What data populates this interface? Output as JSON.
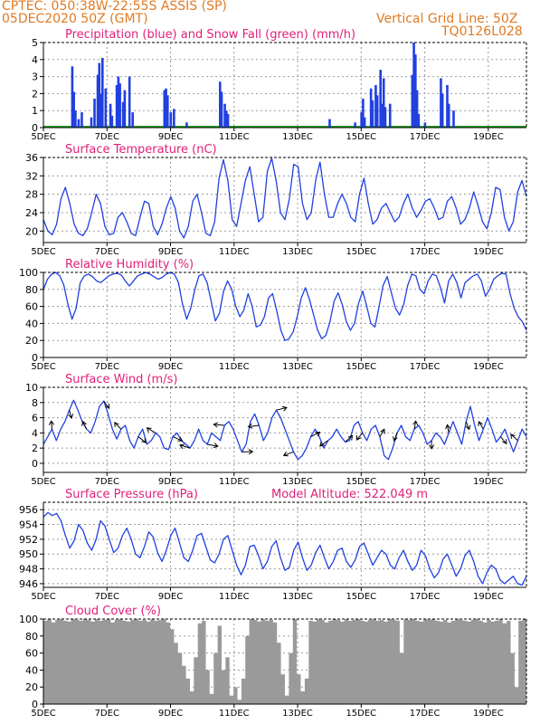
{
  "header": {
    "line1": "CPTEC:   050:38W-22:55S   ASSIS (SP)",
    "line2": "05DEC2020 50Z (GMT)",
    "grid_note": "Vertical Grid Line: 50Z",
    "code": "TQ0126L028"
  },
  "colors": {
    "title": "#e0207a",
    "header": "#e07a22",
    "series": "#2040e0",
    "snow": "#20a020",
    "cloud": "#9a9a9a"
  },
  "x_ticks": [
    "5DEC",
    "7DEC",
    "9DEC",
    "11DEC",
    "13DEC",
    "15DEC",
    "17DEC",
    "19DEC"
  ],
  "chart_data": [
    {
      "id": "precip",
      "type": "bar",
      "title": "Precipitation (blue) and Snow Fall (green) (mm/h)",
      "ylim": [
        0,
        5
      ],
      "yticks": [
        0,
        1,
        2,
        3,
        4,
        5
      ],
      "xlim": [
        5,
        20.2
      ],
      "series": [
        {
          "color": "blue",
          "points": [
            [
              5.9,
              3.6
            ],
            [
              5.95,
              2.1
            ],
            [
              6.0,
              1.0
            ],
            [
              6.1,
              0.5
            ],
            [
              6.2,
              0.9
            ],
            [
              6.5,
              0.6
            ],
            [
              6.6,
              1.7
            ],
            [
              6.7,
              3.1
            ],
            [
              6.75,
              3.8
            ],
            [
              6.8,
              2.0
            ],
            [
              6.85,
              4.1
            ],
            [
              6.95,
              2.3
            ],
            [
              7.1,
              1.4
            ],
            [
              7.15,
              0.7
            ],
            [
              7.3,
              2.5
            ],
            [
              7.35,
              3.0
            ],
            [
              7.4,
              2.6
            ],
            [
              7.5,
              1.5
            ],
            [
              7.55,
              2.2
            ],
            [
              7.7,
              3.0
            ],
            [
              7.8,
              0.9
            ],
            [
              8.8,
              2.2
            ],
            [
              8.85,
              2.3
            ],
            [
              8.9,
              1.9
            ],
            [
              9.0,
              0.9
            ],
            [
              9.1,
              1.1
            ],
            [
              9.5,
              0.3
            ],
            [
              10.55,
              2.7
            ],
            [
              10.6,
              2.1
            ],
            [
              10.7,
              1.4
            ],
            [
              10.75,
              1.0
            ],
            [
              10.8,
              0.8
            ],
            [
              14.0,
              0.5
            ],
            [
              14.8,
              0.3
            ],
            [
              15.0,
              0.9
            ],
            [
              15.05,
              1.7
            ],
            [
              15.1,
              0.6
            ],
            [
              15.3,
              2.3
            ],
            [
              15.35,
              1.6
            ],
            [
              15.45,
              2.5
            ],
            [
              15.5,
              1.9
            ],
            [
              15.6,
              3.4
            ],
            [
              15.65,
              1.4
            ],
            [
              15.7,
              2.9
            ],
            [
              15.75,
              1.2
            ],
            [
              15.9,
              1.4
            ],
            [
              16.6,
              3.1
            ],
            [
              16.65,
              5.0
            ],
            [
              16.7,
              4.3
            ],
            [
              16.75,
              2.2
            ],
            [
              16.8,
              0.8
            ],
            [
              17.0,
              0.3
            ],
            [
              17.5,
              2.9
            ],
            [
              17.55,
              2.0
            ],
            [
              17.7,
              2.5
            ],
            [
              17.75,
              1.4
            ],
            [
              17.9,
              1.0
            ]
          ]
        },
        {
          "color": "green",
          "points": []
        }
      ]
    },
    {
      "id": "temp",
      "type": "line",
      "title": "Surface Temperature (nC)",
      "ylim": [
        17.5,
        36
      ],
      "yticks": [
        20,
        24,
        28,
        32,
        36
      ],
      "xlim": [
        5,
        20.2
      ],
      "values": [
        22.5,
        20.0,
        19.2,
        21.5,
        27.0,
        29.5,
        26.0,
        21.5,
        19.5,
        19.0,
        20.5,
        24.0,
        28.0,
        26.0,
        21.0,
        19.2,
        19.5,
        23.0,
        24.0,
        22.0,
        19.5,
        19.0,
        23.0,
        26.5,
        26.0,
        21.0,
        19.2,
        21.5,
        25.0,
        27.5,
        25.0,
        20.0,
        18.5,
        21.0,
        26.5,
        28.0,
        24.0,
        19.5,
        19.0,
        22.0,
        31.5,
        35.5,
        31.0,
        22.5,
        21.0,
        26.0,
        31.0,
        34.0,
        28.0,
        22.0,
        23.0,
        33.0,
        35.8,
        31.0,
        24.0,
        22.5,
        27.0,
        34.5,
        34.0,
        26.0,
        22.5,
        24.0,
        31.0,
        35.0,
        28.0,
        23.0,
        23.0,
        26.0,
        28.0,
        26.0,
        23.0,
        22.0,
        28.0,
        31.5,
        26.0,
        21.5,
        22.5,
        25.0,
        26.0,
        24.0,
        22.0,
        23.0,
        26.0,
        28.0,
        25.0,
        23.0,
        24.5,
        26.5,
        27.0,
        25.0,
        22.5,
        23.0,
        26.5,
        27.5,
        25.0,
        21.5,
        22.5,
        25.0,
        28.5,
        25.5,
        22.0,
        20.5,
        24.0,
        29.5,
        29.0,
        23.0,
        20.0,
        22.0,
        28.5,
        31.0,
        27.5
      ]
    },
    {
      "id": "rh",
      "type": "line",
      "title": "Relative Humidity (%)",
      "ylim": [
        0,
        100
      ],
      "yticks": [
        0,
        20,
        40,
        60,
        80,
        100
      ],
      "xlim": [
        5,
        20.2
      ],
      "values": [
        80,
        92,
        98,
        100,
        96,
        85,
        62,
        45,
        58,
        88,
        96,
        98,
        95,
        90,
        88,
        92,
        96,
        98,
        99,
        97,
        90,
        84,
        90,
        96,
        98,
        100,
        98,
        95,
        92,
        94,
        98,
        100,
        98,
        88,
        62,
        45,
        58,
        80,
        96,
        98,
        88,
        66,
        43,
        52,
        78,
        90,
        80,
        60,
        48,
        56,
        75,
        60,
        36,
        38,
        48,
        70,
        75,
        55,
        32,
        20,
        22,
        30,
        48,
        70,
        82,
        68,
        50,
        32,
        22,
        26,
        42,
        66,
        76,
        62,
        42,
        32,
        40,
        64,
        78,
        60,
        40,
        36,
        60,
        85,
        95,
        76,
        58,
        50,
        62,
        85,
        98,
        96,
        80,
        75,
        90,
        98,
        96,
        82,
        64,
        90,
        98,
        88,
        70,
        88,
        92,
        96,
        98,
        90,
        72,
        80,
        92,
        96,
        99,
        98,
        75,
        58,
        48,
        42,
        32
      ]
    },
    {
      "id": "wind",
      "type": "line",
      "title": "Surface Wind (m/s)",
      "ylim": [
        -1.2,
        10
      ],
      "yticks": [
        0,
        2,
        4,
        6,
        8,
        10
      ],
      "xlim": [
        5,
        20.2
      ],
      "values": [
        2.5,
        3.5,
        4.5,
        3.0,
        4.5,
        5.5,
        7.0,
        8.3,
        7.0,
        5.5,
        4.5,
        4.0,
        5.5,
        7.5,
        8.2,
        6.5,
        4.5,
        3.2,
        4.5,
        5.0,
        3.0,
        2.0,
        3.5,
        4.5,
        2.5,
        3.0,
        4.0,
        3.5,
        2.0,
        1.8,
        3.5,
        4.0,
        3.0,
        2.5,
        2.0,
        3.0,
        4.5,
        3.0,
        2.5,
        4.0,
        3.5,
        3.0,
        5.0,
        5.5,
        4.5,
        3.0,
        1.5,
        2.5,
        5.5,
        6.5,
        5.0,
        3.0,
        4.0,
        6.0,
        7.0,
        6.0,
        4.5,
        3.0,
        1.5,
        0.5,
        1.0,
        2.0,
        3.5,
        4.5,
        3.5,
        2.0,
        3.0,
        3.5,
        4.5,
        3.5,
        2.8,
        3.0,
        5.0,
        5.5,
        4.0,
        3.0,
        4.5,
        5.0,
        3.5,
        1.0,
        0.5,
        2.0,
        4.0,
        5.0,
        3.5,
        3.0,
        4.5,
        5.0,
        4.0,
        2.5,
        3.0,
        4.0,
        3.5,
        2.5,
        4.0,
        5.5,
        4.0,
        2.5,
        5.5,
        7.5,
        5.0,
        3.0,
        4.5,
        6.0,
        4.5,
        2.8,
        3.5,
        4.5,
        3.0,
        1.5,
        3.0,
        4.5,
        3.5
      ]
    },
    {
      "id": "pressure",
      "type": "line",
      "title": "Surface Pressure (hPa)",
      "subtitle": "Model Altitude: 522.049 m",
      "ylim": [
        945.5,
        957
      ],
      "yticks": [
        946,
        948,
        950,
        952,
        954,
        956
      ],
      "xlim": [
        5,
        20.2
      ],
      "values": [
        955.0,
        955.6,
        955.2,
        955.5,
        954.5,
        952.5,
        950.8,
        951.8,
        954.0,
        953.2,
        951.5,
        950.5,
        952.0,
        954.5,
        953.8,
        952.0,
        950.2,
        950.8,
        952.5,
        953.5,
        952.0,
        950.0,
        949.5,
        951.0,
        953.0,
        952.3,
        950.2,
        949.0,
        950.5,
        952.5,
        953.5,
        951.5,
        949.5,
        949.0,
        950.5,
        952.5,
        952.8,
        951.0,
        949.2,
        948.8,
        950.0,
        952.0,
        952.5,
        950.5,
        948.5,
        947.2,
        948.5,
        951.0,
        951.2,
        949.8,
        948.0,
        949.0,
        951.0,
        951.8,
        949.5,
        947.8,
        948.2,
        950.5,
        951.6,
        949.5,
        947.8,
        948.5,
        950.2,
        951.2,
        949.5,
        948.0,
        949.0,
        950.5,
        950.8,
        949.0,
        948.2,
        949.2,
        951.0,
        951.5,
        950.0,
        948.5,
        949.5,
        950.5,
        950.0,
        948.5,
        948.0,
        949.5,
        950.5,
        949.0,
        947.8,
        948.5,
        950.5,
        949.8,
        948.0,
        946.8,
        947.5,
        949.3,
        950.0,
        948.5,
        947.0,
        948.0,
        949.8,
        950.5,
        949.0,
        947.0,
        946.0,
        947.5,
        948.5,
        948.0,
        946.5,
        946.0,
        946.5,
        947.0,
        946.0,
        945.8,
        947.0
      ]
    },
    {
      "id": "cloud",
      "type": "area",
      "title": "Cloud Cover (%)",
      "ylim": [
        0,
        100
      ],
      "yticks": [
        0,
        20,
        40,
        60,
        80,
        100
      ],
      "xlim": [
        5,
        20.2
      ],
      "values": [
        98,
        100,
        96,
        99,
        100,
        98,
        97,
        100,
        99,
        98,
        100,
        99,
        97,
        100,
        98,
        99,
        100,
        96,
        99,
        100,
        98,
        97,
        99,
        100,
        98,
        99,
        97,
        100,
        98,
        99,
        100,
        96,
        88,
        72,
        60,
        45,
        30,
        15,
        55,
        95,
        98,
        40,
        12,
        60,
        92,
        40,
        55,
        10,
        20,
        5,
        30,
        80,
        100,
        99,
        97,
        100,
        98,
        99,
        96,
        72,
        35,
        10,
        60,
        100,
        35,
        15,
        30,
        98,
        97,
        100,
        99,
        96,
        98,
        100,
        99,
        97,
        100,
        98,
        99,
        100,
        98,
        97,
        99,
        100,
        98,
        99,
        97,
        100,
        99,
        98,
        60,
        100,
        99,
        100,
        98,
        97,
        100,
        99,
        100,
        98,
        97,
        99,
        96,
        98,
        100,
        99,
        98,
        97,
        99,
        100,
        98,
        96,
        99,
        97,
        98,
        100,
        95,
        98,
        60,
        20,
        98,
        100
      ]
    }
  ]
}
